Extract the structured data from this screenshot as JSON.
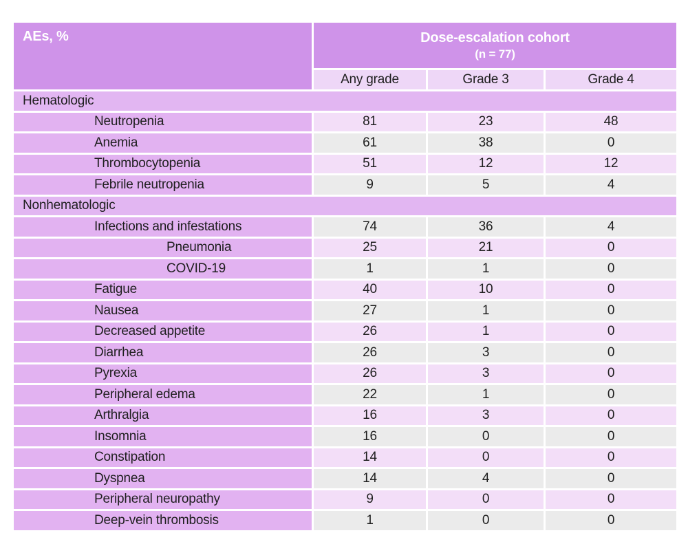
{
  "page": {
    "background": "#ffffff"
  },
  "colors": {
    "header_purple": "#cf93e9",
    "subheader_lavender": "#eed7f7",
    "section_purple": "#e2b6f2",
    "name_column_purple": "#e2b2f1",
    "cell_pink": "#f3def8",
    "cell_gray": "#ebebeb",
    "header_text": "#ffffff",
    "body_text": "#1f1f1f"
  },
  "table": {
    "corner_label": "AEs, %",
    "cohort_header": {
      "title": "Dose-escalation cohort",
      "subtitle": "(n = 77)"
    },
    "columns": [
      "Any grade",
      "Grade 3",
      "Grade 4"
    ],
    "rows": [
      {
        "type": "section",
        "label": "Hematologic"
      },
      {
        "type": "data",
        "label": "Neutropenia",
        "indent": 1,
        "values": [
          81,
          23,
          48
        ],
        "shade": "pink"
      },
      {
        "type": "data",
        "label": "Anemia",
        "indent": 1,
        "values": [
          61,
          38,
          0
        ],
        "shade": "gray"
      },
      {
        "type": "data",
        "label": "Thrombocytopenia",
        "indent": 1,
        "values": [
          51,
          12,
          12
        ],
        "shade": "pink"
      },
      {
        "type": "data",
        "label": "Febrile neutropenia",
        "indent": 1,
        "values": [
          9,
          5,
          4
        ],
        "shade": "gray"
      },
      {
        "type": "section",
        "label": "Nonhematologic"
      },
      {
        "type": "data",
        "label": "Infections and infestations",
        "indent": 1,
        "values": [
          74,
          36,
          4
        ],
        "shade": "gray"
      },
      {
        "type": "data",
        "label": "Pneumonia",
        "indent": 2,
        "values": [
          25,
          21,
          0
        ],
        "shade": "pink"
      },
      {
        "type": "data",
        "label": "COVID-19",
        "indent": 2,
        "values": [
          1,
          1,
          0
        ],
        "shade": "gray"
      },
      {
        "type": "data",
        "label": "Fatigue",
        "indent": 1,
        "values": [
          40,
          10,
          0
        ],
        "shade": "pink"
      },
      {
        "type": "data",
        "label": "Nausea",
        "indent": 1,
        "values": [
          27,
          1,
          0
        ],
        "shade": "gray"
      },
      {
        "type": "data",
        "label": "Decreased appetite",
        "indent": 1,
        "values": [
          26,
          1,
          0
        ],
        "shade": "pink"
      },
      {
        "type": "data",
        "label": "Diarrhea",
        "indent": 1,
        "values": [
          26,
          3,
          0
        ],
        "shade": "gray"
      },
      {
        "type": "data",
        "label": "Pyrexia",
        "indent": 1,
        "values": [
          26,
          3,
          0
        ],
        "shade": "pink"
      },
      {
        "type": "data",
        "label": "Peripheral edema",
        "indent": 1,
        "values": [
          22,
          1,
          0
        ],
        "shade": "gray"
      },
      {
        "type": "data",
        "label": "Arthralgia",
        "indent": 1,
        "values": [
          16,
          3,
          0
        ],
        "shade": "pink"
      },
      {
        "type": "data",
        "label": "Insomnia",
        "indent": 1,
        "values": [
          16,
          0,
          0
        ],
        "shade": "gray"
      },
      {
        "type": "data",
        "label": "Constipation",
        "indent": 1,
        "values": [
          14,
          0,
          0
        ],
        "shade": "pink"
      },
      {
        "type": "data",
        "label": "Dyspnea",
        "indent": 1,
        "values": [
          14,
          4,
          0
        ],
        "shade": "gray"
      },
      {
        "type": "data",
        "label": "Peripheral neuropathy",
        "indent": 1,
        "values": [
          9,
          0,
          0
        ],
        "shade": "pink"
      },
      {
        "type": "data",
        "label": "Deep-vein thrombosis",
        "indent": 1,
        "values": [
          1,
          0,
          0
        ],
        "shade": "gray"
      }
    ]
  },
  "chart_data": {
    "type": "table",
    "title": "Dose-escalation cohort (n = 77)",
    "columns": [
      "AEs, %",
      "Any grade",
      "Grade 3",
      "Grade 4"
    ],
    "sections": [
      {
        "name": "Hematologic",
        "rows": [
          {
            "ae": "Neutropenia",
            "any_grade": 81,
            "grade_3": 23,
            "grade_4": 48
          },
          {
            "ae": "Anemia",
            "any_grade": 61,
            "grade_3": 38,
            "grade_4": 0
          },
          {
            "ae": "Thrombocytopenia",
            "any_grade": 51,
            "grade_3": 12,
            "grade_4": 12
          },
          {
            "ae": "Febrile neutropenia",
            "any_grade": 9,
            "grade_3": 5,
            "grade_4": 4
          }
        ]
      },
      {
        "name": "Nonhematologic",
        "rows": [
          {
            "ae": "Infections and infestations",
            "any_grade": 74,
            "grade_3": 36,
            "grade_4": 4
          },
          {
            "ae": "Pneumonia",
            "sub_of": "Infections and infestations",
            "any_grade": 25,
            "grade_3": 21,
            "grade_4": 0
          },
          {
            "ae": "COVID-19",
            "sub_of": "Infections and infestations",
            "any_grade": 1,
            "grade_3": 1,
            "grade_4": 0
          },
          {
            "ae": "Fatigue",
            "any_grade": 40,
            "grade_3": 10,
            "grade_4": 0
          },
          {
            "ae": "Nausea",
            "any_grade": 27,
            "grade_3": 1,
            "grade_4": 0
          },
          {
            "ae": "Decreased appetite",
            "any_grade": 26,
            "grade_3": 1,
            "grade_4": 0
          },
          {
            "ae": "Diarrhea",
            "any_grade": 26,
            "grade_3": 3,
            "grade_4": 0
          },
          {
            "ae": "Pyrexia",
            "any_grade": 26,
            "grade_3": 3,
            "grade_4": 0
          },
          {
            "ae": "Peripheral edema",
            "any_grade": 22,
            "grade_3": 1,
            "grade_4": 0
          },
          {
            "ae": "Arthralgia",
            "any_grade": 16,
            "grade_3": 3,
            "grade_4": 0
          },
          {
            "ae": "Insomnia",
            "any_grade": 16,
            "grade_3": 0,
            "grade_4": 0
          },
          {
            "ae": "Constipation",
            "any_grade": 14,
            "grade_3": 0,
            "grade_4": 0
          },
          {
            "ae": "Dyspnea",
            "any_grade": 14,
            "grade_3": 4,
            "grade_4": 0
          },
          {
            "ae": "Peripheral neuropathy",
            "any_grade": 9,
            "grade_3": 0,
            "grade_4": 0
          },
          {
            "ae": "Deep-vein thrombosis",
            "any_grade": 1,
            "grade_3": 0,
            "grade_4": 0
          }
        ]
      }
    ]
  }
}
